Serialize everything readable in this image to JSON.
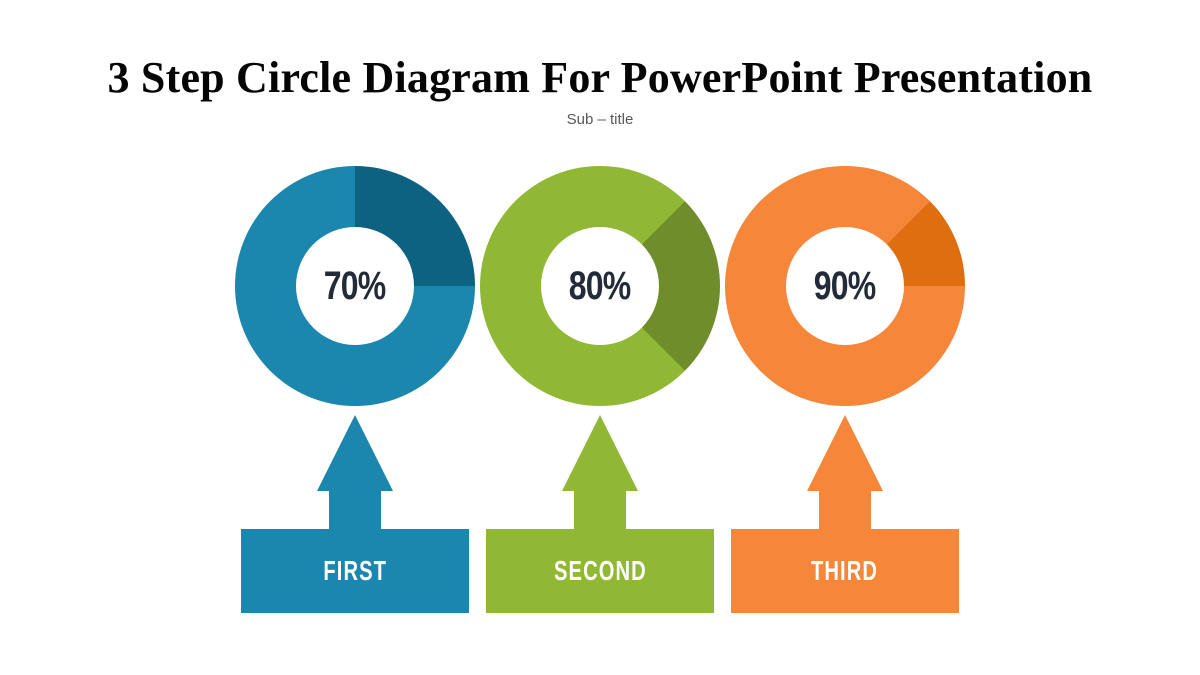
{
  "slide": {
    "title": "3 Step Circle Diagram For PowerPoint Presentation",
    "subtitle": "Sub – title"
  },
  "steps": [
    {
      "label": "FIRST",
      "percent_label": "70%",
      "value": 70,
      "color": "#1b86ae",
      "shade_color": "#0d6181",
      "shade_start_deg": 0,
      "shade_end_deg": 90
    },
    {
      "label": "SECOND",
      "percent_label": "80%",
      "value": 80,
      "color": "#90b835",
      "shade_color": "#6f8e2b",
      "shade_start_deg": 45,
      "shade_end_deg": 135
    },
    {
      "label": "THIRD",
      "percent_label": "90%",
      "value": 90,
      "color": "#f5863a",
      "shade_color": "#de6e10",
      "shade_start_deg": 45,
      "shade_end_deg": 90
    }
  ],
  "chart_data": {
    "type": "pie",
    "variant": "donut-progress",
    "title": "3 Step Circle Diagram For PowerPoint Presentation",
    "items": [
      {
        "label": "FIRST",
        "value": 70
      },
      {
        "label": "SECOND",
        "value": 80
      },
      {
        "label": "THIRD",
        "value": 90
      }
    ]
  },
  "colors": {
    "background": "#ffffff",
    "title_text": "#050505",
    "subtitle_text": "#595959",
    "percent_text": "#232a38",
    "step_label_text": "#ffffff"
  }
}
